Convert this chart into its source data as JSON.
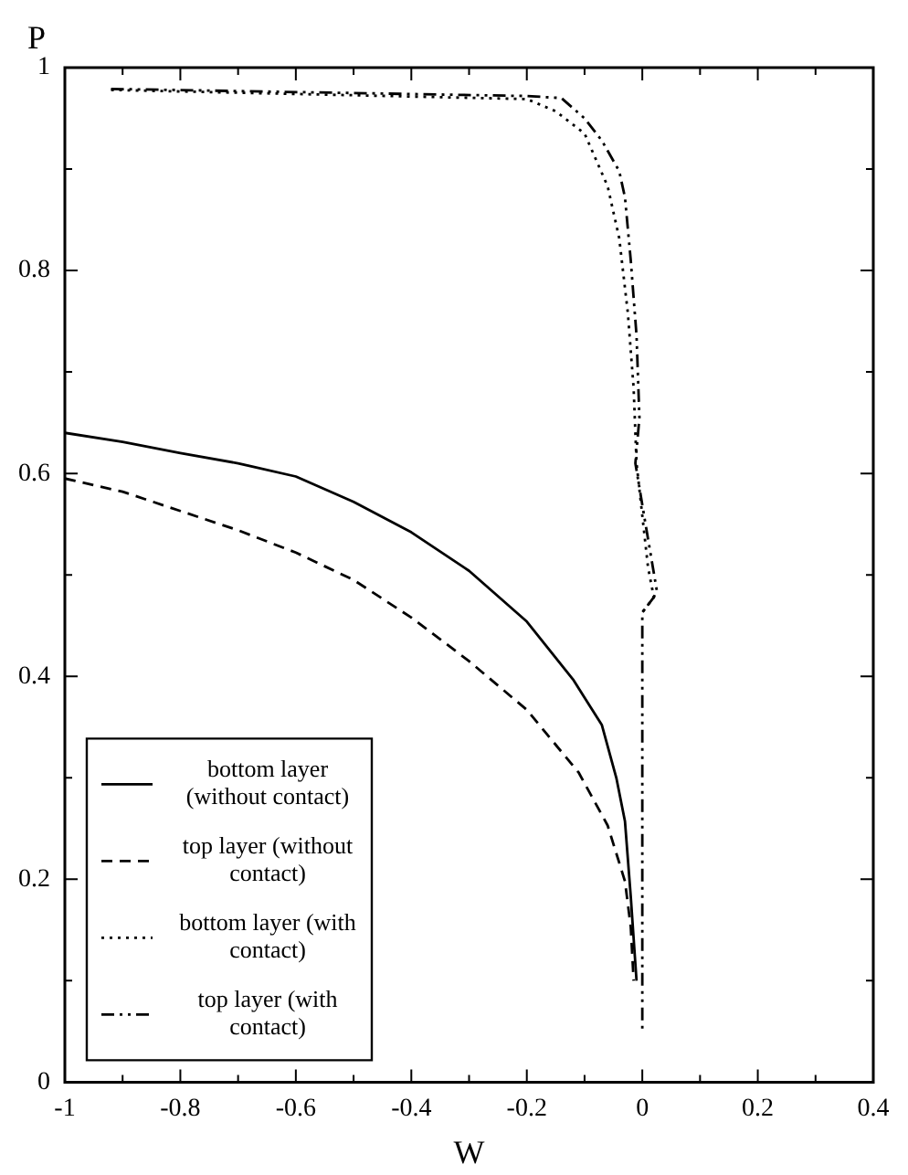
{
  "chart_data": {
    "type": "line",
    "xlabel": "W",
    "ylabel": "P",
    "xlim": [
      -1,
      0.4
    ],
    "ylim": [
      0,
      1
    ],
    "xticks": [
      -1,
      {
        "value": -0.9,
        "label": null
      },
      -0.8,
      {
        "value": -0.7,
        "label": null
      },
      -0.6,
      {
        "value": -0.5,
        "label": null
      },
      -0.4,
      {
        "value": -0.3,
        "label": null
      },
      -0.2,
      {
        "value": -0.1,
        "label": null
      },
      0,
      {
        "value": 0.1,
        "label": null
      },
      0.2,
      {
        "value": 0.3,
        "label": null
      },
      0.4
    ],
    "yticks": [
      0,
      {
        "value": 0.1,
        "label": null
      },
      0.2,
      {
        "value": 0.3,
        "label": null
      },
      0.4,
      {
        "value": 0.5,
        "label": null
      },
      0.6,
      {
        "value": 0.7,
        "label": null
      },
      0.8,
      {
        "value": 0.9,
        "label": null
      },
      1
    ],
    "grid": false,
    "legend": "bottom left",
    "marker": "none",
    "series": [
      {
        "name": "bottom layer (without contact)",
        "color": "#000000",
        "line_style": "solid",
        "x": [
          -1,
          -0.9,
          -0.8,
          -0.7,
          -0.6,
          -0.5,
          -0.4,
          -0.3,
          -0.2,
          -0.12,
          -0.07,
          -0.045,
          -0.03,
          -0.02,
          -0.01
        ],
        "values": [
          0.64,
          0.631,
          0.62,
          0.61,
          0.597,
          0.572,
          0.542,
          0.504,
          0.454,
          0.397,
          0.352,
          0.3,
          0.257,
          0.183,
          0.1
        ]
      },
      {
        "name": "top layer (without contact)",
        "color": "#000000",
        "line_style": "dashed",
        "x": [
          -1,
          -0.9,
          -0.8,
          -0.7,
          -0.6,
          -0.5,
          -0.4,
          -0.3,
          -0.2,
          -0.11,
          -0.06,
          -0.03,
          -0.02,
          -0.015
        ],
        "values": [
          0.595,
          0.582,
          0.563,
          0.544,
          0.522,
          0.495,
          0.458,
          0.415,
          0.367,
          0.305,
          0.253,
          0.198,
          0.153,
          0.1
        ]
      },
      {
        "name": "bottom layer (with contact)",
        "color": "#000000",
        "line_style": "dotted",
        "x": [
          -0.92,
          -0.2,
          -0.15,
          -0.1,
          -0.06,
          -0.04,
          -0.025,
          -0.015,
          -0.01,
          0.01,
          0.02,
          0
        ],
        "values": [
          0.978,
          0.969,
          0.957,
          0.935,
          0.883,
          0.832,
          0.758,
          0.684,
          0.61,
          0.507,
          0.478,
          0.463
        ]
      },
      {
        "name": "top layer (with contact)",
        "color": "#000000",
        "line_style": "dashdot",
        "x": [
          -0.92,
          -0.2,
          -0.14,
          -0.1,
          -0.07,
          -0.04,
          -0.03,
          -0.02,
          -0.01,
          -0.005,
          -0.012,
          0.005,
          0.025,
          0.02,
          0,
          0
        ],
        "values": [
          0.979,
          0.972,
          0.97,
          0.95,
          0.928,
          0.898,
          0.872,
          0.81,
          0.736,
          0.655,
          0.61,
          0.552,
          0.485,
          0.478,
          0.463,
          0.05
        ]
      }
    ]
  }
}
